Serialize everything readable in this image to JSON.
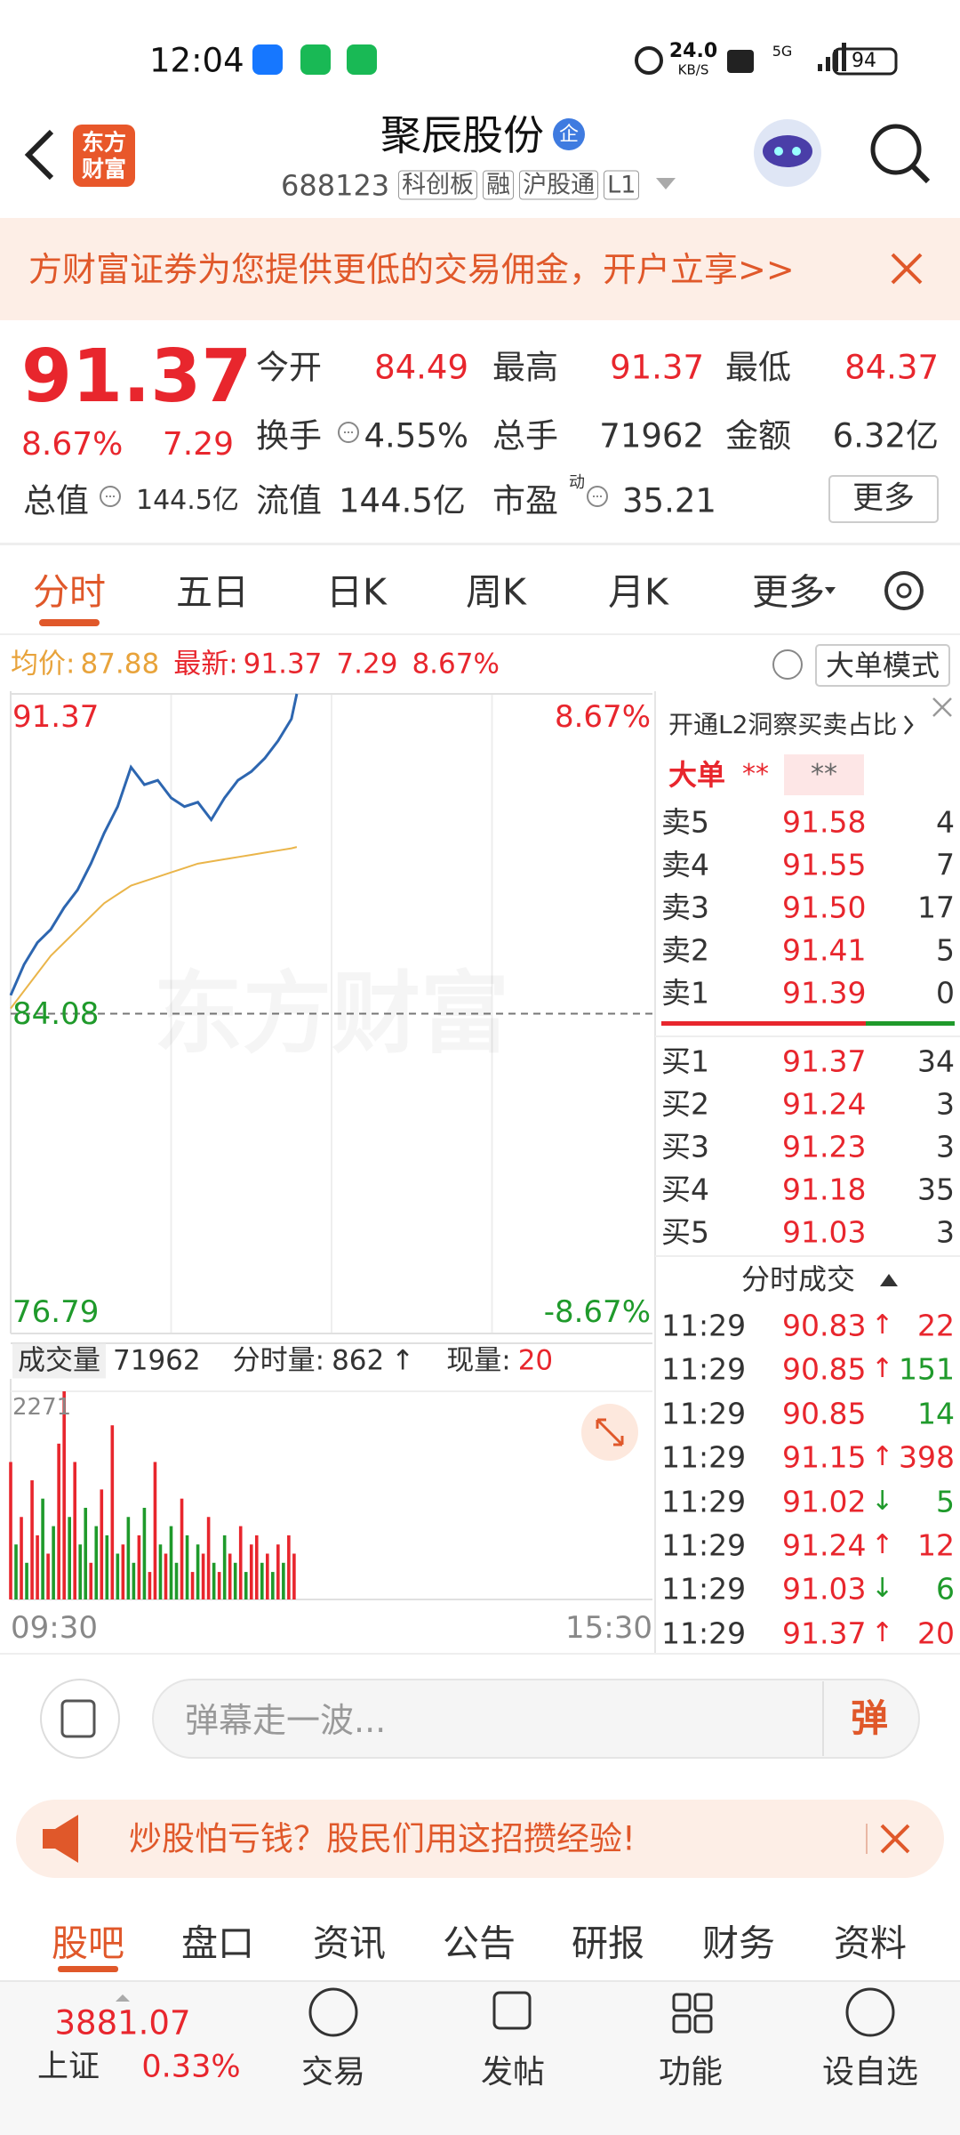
{
  "status_bar": {
    "time": "12:04",
    "net_speed": "24.0",
    "net_unit": "KB/S",
    "network": "5G",
    "battery": "94"
  },
  "header": {
    "logo_top": "东方",
    "logo_bottom": "财富",
    "name": "聚辰股份",
    "badge": "企",
    "code": "688123",
    "tags": [
      "科创板",
      "融",
      "沪股通",
      "L1"
    ]
  },
  "banner": {
    "text": "方财富证券为您提供更低的交易佣金，开户立享>>"
  },
  "quote": {
    "price": "91.37",
    "change_pct": "8.67%",
    "change": "7.29",
    "stats": [
      {
        "label": "今开",
        "value": "84.49"
      },
      {
        "label": "最高",
        "value": "91.37"
      },
      {
        "label": "最低",
        "value": "84.37"
      },
      {
        "label": "换手",
        "value": "4.55%"
      },
      {
        "label": "总手",
        "value": "71962"
      },
      {
        "label": "金额",
        "value": "6.32亿"
      },
      {
        "label": "总值",
        "value": "144.5亿"
      },
      {
        "label": "流值",
        "value": "144.5亿"
      },
      {
        "label": "市盈",
        "value": "35.21",
        "sup": "动"
      }
    ],
    "more": "更多"
  },
  "tabs": {
    "items": [
      "分时",
      "五日",
      "日K",
      "周K",
      "月K",
      "更多"
    ],
    "active": 0
  },
  "info_bar": {
    "avg_label": "均价:",
    "avg": "87.88",
    "latest_label": "最新:",
    "latest": "91.37",
    "change": "7.29",
    "change_pct": "8.67%",
    "mode": "大单模式"
  },
  "watermark": "东方财富",
  "chart_data": [
    {
      "type": "line",
      "x": [
        0,
        5,
        10,
        15,
        20,
        25,
        30,
        35,
        40,
        45,
        50,
        55,
        60,
        65,
        70,
        75,
        80,
        85,
        90,
        95,
        100,
        105,
        107
      ],
      "series": [
        {
          "color": "#2d66b0",
          "values": [
            84.5,
            85.2,
            85.7,
            86.0,
            86.5,
            86.9,
            87.5,
            88.2,
            88.8,
            89.7,
            89.3,
            89.4,
            89.0,
            88.8,
            88.9,
            88.5,
            89.0,
            89.4,
            89.6,
            89.9,
            90.3,
            90.8,
            91.37
          ]
        },
        {
          "color": "#eab54a",
          "values": [
            84.2,
            84.6,
            85.0,
            85.4,
            85.7,
            86.0,
            86.3,
            86.6,
            86.8,
            87.0,
            87.1,
            87.2,
            87.3,
            87.4,
            87.5,
            87.55,
            87.6,
            87.65,
            87.7,
            87.75,
            87.8,
            87.85,
            87.88
          ]
        }
      ],
      "xlim": [
        0,
        240
      ],
      "xticks": [
        {
          "value": 0,
          "label": "09:30"
        },
        {
          "value": 240,
          "label": "15:30"
        }
      ],
      "ylim": [
        76.79,
        91.37
      ],
      "yticks": [
        91.37,
        84.08,
        76.79
      ],
      "y2lim": [
        -8.67,
        8.67
      ],
      "y2ticks": [
        {
          "value": 8.67,
          "label": "8.67%"
        },
        {
          "value": -8.67,
          "label": "-8.67%"
        }
      ]
    },
    {
      "type": "bar",
      "x": [
        0,
        2,
        4,
        6,
        8,
        10,
        12,
        14,
        16,
        18,
        20,
        22,
        24,
        26,
        28,
        30,
        32,
        34,
        36,
        38,
        40,
        42,
        44,
        46,
        48,
        50,
        52,
        54,
        56,
        58,
        60,
        62,
        64,
        66,
        68,
        70,
        72,
        74,
        76,
        78,
        80,
        82,
        84,
        86,
        88,
        90,
        92,
        94,
        96,
        98,
        100,
        102,
        104,
        106
      ],
      "values": [
        1500,
        600,
        900,
        400,
        1300,
        700,
        1100,
        500,
        800,
        1700,
        2271,
        900,
        1500,
        600,
        1000,
        400,
        800,
        1200,
        700,
        1900,
        500,
        600,
        900,
        400,
        700,
        1000,
        300,
        1500,
        600,
        500,
        800,
        400,
        1100,
        700,
        300,
        600,
        500,
        900,
        400,
        300,
        700,
        500,
        400,
        800,
        300,
        600,
        700,
        400,
        500,
        300,
        600,
        400,
        700,
        500
      ],
      "colors": [
        "#e8262d",
        "#1f9a2b",
        "#e8262d",
        "#1f9a2b",
        "#e8262d",
        "#e8262d",
        "#1f9a2b",
        "#e8262d",
        "#1f9a2b",
        "#e8262d",
        "#e8262d",
        "#1f9a2b",
        "#e8262d",
        "#1f9a2b",
        "#1f9a2b",
        "#e8262d",
        "#1f9a2b",
        "#e8262d",
        "#1f9a2b",
        "#e8262d",
        "#1f9a2b",
        "#e8262d",
        "#1f9a2b",
        "#1f9a2b",
        "#e8262d",
        "#1f9a2b",
        "#e8262d",
        "#e8262d",
        "#1f9a2b",
        "#e8262d",
        "#1f9a2b",
        "#1f9a2b",
        "#e8262d",
        "#1f9a2b",
        "#e8262d",
        "#1f9a2b",
        "#e8262d",
        "#e8262d",
        "#1f9a2b",
        "#e8262d",
        "#1f9a2b",
        "#e8262d",
        "#1f9a2b",
        "#e8262d",
        "#1f9a2b",
        "#e8262d",
        "#e8262d",
        "#1f9a2b",
        "#e8262d",
        "#1f9a2b",
        "#e8262d",
        "#1f9a2b",
        "#e8262d",
        "#e8262d"
      ],
      "xlim": [
        0,
        240
      ],
      "ylim": [
        0,
        2271
      ],
      "yticks": [
        2271
      ]
    }
  ],
  "volume_bar": {
    "label": "成交量",
    "total": "71962",
    "minute_label": "分时量:",
    "minute": "862",
    "minute_trend": "↑",
    "current_label": "现量:",
    "current": "20"
  },
  "order_book": {
    "l2": "开通L2洞察买卖占比",
    "big_label": "大单",
    "big_buy": "**",
    "big_sell": "**",
    "asks": [
      [
        "卖5",
        "91.58",
        "4"
      ],
      [
        "卖4",
        "91.55",
        "7"
      ],
      [
        "卖3",
        "91.50",
        "17"
      ],
      [
        "卖2",
        "91.41",
        "5"
      ],
      [
        "卖1",
        "91.39",
        "0"
      ]
    ],
    "bids": [
      [
        "买1",
        "91.37",
        "34"
      ],
      [
        "买2",
        "91.24",
        "3"
      ],
      [
        "买3",
        "91.23",
        "3"
      ],
      [
        "买4",
        "91.18",
        "35"
      ],
      [
        "买5",
        "91.03",
        "3"
      ]
    ]
  },
  "trades": {
    "title": "分时成交",
    "rows": [
      {
        "time": "11:29",
        "price": "90.83",
        "arrow": "↑",
        "volume": "22",
        "color": "#e8262d"
      },
      {
        "time": "11:29",
        "price": "90.85",
        "arrow": "↑",
        "volume": "151",
        "color": "#1f9a2b"
      },
      {
        "time": "11:29",
        "price": "90.85",
        "volume": "14",
        "color": "#1f9a2b"
      },
      {
        "time": "11:29",
        "price": "91.15",
        "arrow": "↑",
        "volume": "398",
        "color": "#e8262d"
      },
      {
        "time": "11:29",
        "price": "91.02",
        "arrow": "↓",
        "volume": "5",
        "color": "#1f9a2b"
      },
      {
        "time": "11:29",
        "price": "91.24",
        "arrow": "↑",
        "volume": "12",
        "color": "#e8262d"
      },
      {
        "time": "11:29",
        "price": "91.03",
        "arrow": "↓",
        "volume": "6",
        "color": "#1f9a2b"
      },
      {
        "time": "11:29",
        "price": "91.37",
        "arrow": "↑",
        "volume": "20",
        "color": "#e8262d"
      }
    ]
  },
  "comment": {
    "placeholder": "弹幕走一波...",
    "button": "弹"
  },
  "promo": {
    "text": "炒股怕亏钱？股民们用这招攒经验!"
  },
  "bottom_tabs": {
    "items": [
      "股吧",
      "盘口",
      "资讯",
      "公告",
      "研报",
      "财务",
      "资料"
    ],
    "active": 0
  },
  "nav": {
    "index_value": "3881.07",
    "index_name": "上证",
    "index_change": "0.33%",
    "items": [
      "交易",
      "发帖",
      "功能",
      "设自选"
    ]
  }
}
